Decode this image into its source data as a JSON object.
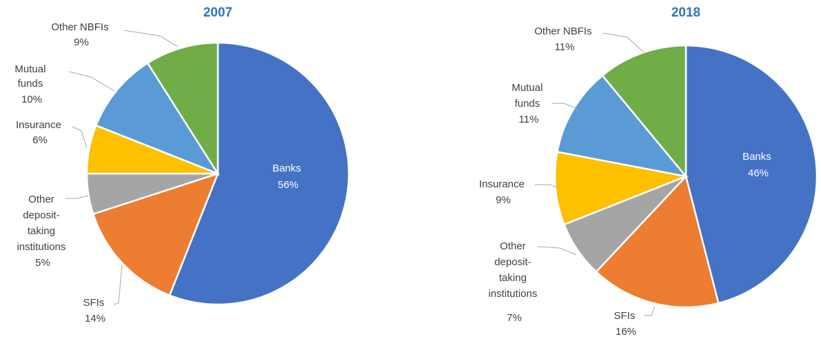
{
  "chart_data": [
    {
      "type": "pie",
      "title": "2007",
      "slices": [
        {
          "label": "Banks",
          "value": 56,
          "value_label": "56%",
          "color": "#4472c4"
        },
        {
          "label": "SFIs",
          "value": 14,
          "value_label": "14%",
          "color": "#ed7d31"
        },
        {
          "label": "Other deposit-taking institutions",
          "value": 5,
          "value_label": "5%",
          "color": "#a5a5a5"
        },
        {
          "label": "Insurance",
          "value": 6,
          "value_label": "6%",
          "color": "#ffc000"
        },
        {
          "label": "Mutual funds",
          "value": 10,
          "value_label": "10%",
          "color": "#5b9bd5"
        },
        {
          "label": "Other NBFIs",
          "value": 9,
          "value_label": "9%",
          "color": "#70ad47"
        }
      ]
    },
    {
      "type": "pie",
      "title": "2018",
      "slices": [
        {
          "label": "Banks",
          "value": 46,
          "value_label": "46%",
          "color": "#4472c4"
        },
        {
          "label": "SFIs",
          "value": 16,
          "value_label": "16%",
          "color": "#ed7d31"
        },
        {
          "label": "Other deposit-taking institutions",
          "value": 7,
          "value_label": "7%",
          "color": "#a5a5a5"
        },
        {
          "label": "Insurance",
          "value": 9,
          "value_label": "9%",
          "color": "#ffc000"
        },
        {
          "label": "Mutual funds",
          "value": 11,
          "value_label": "11%",
          "color": "#5b9bd5"
        },
        {
          "label": "Other NBFIs",
          "value": 11,
          "value_label": "11%",
          "color": "#70ad47"
        }
      ]
    }
  ]
}
